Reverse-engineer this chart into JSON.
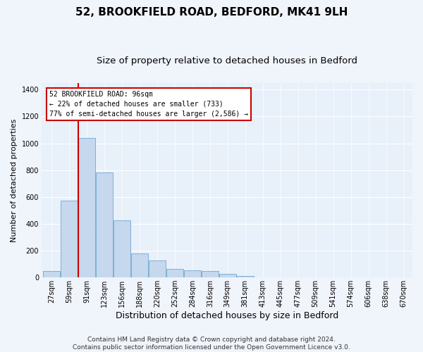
{
  "title": "52, BROOKFIELD ROAD, BEDFORD, MK41 9LH",
  "subtitle": "Size of property relative to detached houses in Bedford",
  "xlabel": "Distribution of detached houses by size in Bedford",
  "ylabel": "Number of detached properties",
  "bar_color": "#c5d8ed",
  "bar_edge_color": "#6fa8d0",
  "fig_bg_color": "#f0f4fb",
  "ax_bg_color": "#e8f0fa",
  "grid_color": "#ffffff",
  "vline_color": "#cc0000",
  "annotation_line1": "52 BROOKFIELD ROAD: 96sqm",
  "annotation_line2": "← 22% of detached houses are smaller (733)",
  "annotation_line3": "77% of semi-detached houses are larger (2,586) →",
  "annotation_box_color": "#ffffff",
  "annotation_box_edge": "#cc0000",
  "bins": [
    "27sqm",
    "59sqm",
    "91sqm",
    "123sqm",
    "156sqm",
    "188sqm",
    "220sqm",
    "252sqm",
    "284sqm",
    "316sqm",
    "349sqm",
    "381sqm",
    "413sqm",
    "445sqm",
    "477sqm",
    "509sqm",
    "541sqm",
    "574sqm",
    "606sqm",
    "638sqm",
    "670sqm"
  ],
  "values": [
    50,
    575,
    1040,
    785,
    425,
    180,
    125,
    65,
    55,
    50,
    25,
    10,
    0,
    0,
    0,
    0,
    0,
    0,
    0,
    0
  ],
  "ylim": [
    0,
    1450
  ],
  "yticks": [
    0,
    200,
    400,
    600,
    800,
    1000,
    1200,
    1400
  ],
  "footer": "Contains HM Land Registry data © Crown copyright and database right 2024.\nContains public sector information licensed under the Open Government Licence v3.0.",
  "title_fontsize": 11,
  "subtitle_fontsize": 9.5,
  "xlabel_fontsize": 9,
  "ylabel_fontsize": 8,
  "tick_fontsize": 7,
  "footer_fontsize": 6.5
}
